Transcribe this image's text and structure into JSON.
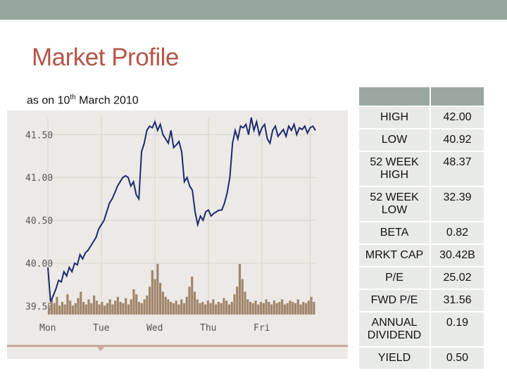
{
  "slide": {
    "title": "Market Profile",
    "subtitle_prefix": "as on 10",
    "subtitle_sup": "th",
    "subtitle_suffix": " March 2010"
  },
  "stats_table": {
    "header": [
      "",
      ""
    ],
    "rows": [
      {
        "label": "HIGH",
        "value": "42.00"
      },
      {
        "label": "LOW",
        "value": "40.92"
      },
      {
        "label": "52 WEEK HIGH",
        "value": "48.37"
      },
      {
        "label": "52 WEEK LOW",
        "value": "32.39"
      },
      {
        "label": "BETA",
        "value": "0.82"
      },
      {
        "label": "MRKT CAP",
        "value": "30.42B"
      },
      {
        "label": "P/E",
        "value": "25.02"
      },
      {
        "label": "FWD P/E",
        "value": "31.56"
      },
      {
        "label": "ANNUAL DIVIDEND",
        "value": "0.19"
      },
      {
        "label": "YIELD",
        "value": "0.50"
      }
    ]
  },
  "chart_data": {
    "type": "line",
    "y_ticks": [
      "41.50",
      "41.00",
      "40.50",
      "40.00",
      "39.50"
    ],
    "x_ticks": [
      "Mon",
      "Tue",
      "Wed",
      "Thu",
      "Fri"
    ],
    "ylim": [
      39.4,
      41.7
    ],
    "series": [
      {
        "x": [
          0,
          0.05,
          0.1,
          0.15,
          0.2,
          0.25,
          0.3,
          0.35,
          0.4,
          0.45,
          0.5,
          0.55,
          0.6,
          0.65,
          0.7,
          0.75,
          0.8,
          0.85,
          0.9,
          0.95,
          1.0,
          1.05,
          1.1,
          1.15,
          1.2,
          1.25,
          1.3,
          1.35,
          1.4,
          1.45,
          1.5,
          1.55,
          1.6,
          1.65,
          1.7,
          1.75,
          1.8,
          1.85,
          1.9,
          1.95,
          2.0,
          2.05,
          2.1,
          2.15,
          2.2,
          2.25,
          2.3,
          2.35,
          2.4,
          2.45,
          2.5,
          2.55,
          2.6,
          2.65,
          2.7,
          2.75,
          2.8,
          2.85,
          2.9,
          2.95,
          3.0,
          3.05,
          3.1,
          3.15,
          3.2,
          3.25,
          3.3,
          3.35,
          3.4,
          3.45,
          3.5,
          3.55,
          3.6,
          3.65,
          3.7,
          3.75,
          3.8,
          3.85,
          3.9,
          3.95,
          4.0,
          4.05,
          4.1,
          4.15,
          4.2,
          4.25,
          4.3,
          4.35,
          4.4,
          4.45,
          4.5,
          4.55,
          4.6,
          4.65,
          4.7,
          4.75,
          4.8,
          4.85,
          4.9,
          4.95,
          5.0
        ],
        "y": [
          39.95,
          39.55,
          39.62,
          39.7,
          39.8,
          39.78,
          39.9,
          39.85,
          39.95,
          39.9,
          40.0,
          39.98,
          40.1,
          40.05,
          40.12,
          40.15,
          40.2,
          40.25,
          40.3,
          40.4,
          40.45,
          40.5,
          40.6,
          40.7,
          40.75,
          40.82,
          40.9,
          40.95,
          41.0,
          41.02,
          41.0,
          40.9,
          40.95,
          40.8,
          40.75,
          41.3,
          41.4,
          41.55,
          41.6,
          41.58,
          41.65,
          41.55,
          41.62,
          41.5,
          41.45,
          41.4,
          41.55,
          41.35,
          41.38,
          41.42,
          41.3,
          40.95,
          41.0,
          40.9,
          40.85,
          40.6,
          40.45,
          40.55,
          40.5,
          40.6,
          40.62,
          40.55,
          40.58,
          40.6,
          40.62,
          40.62,
          40.7,
          40.82,
          41.0,
          41.4,
          41.55,
          41.45,
          41.6,
          41.58,
          41.62,
          41.5,
          41.7,
          41.55,
          41.65,
          41.5,
          41.58,
          41.62,
          41.45,
          41.4,
          41.55,
          41.6,
          41.48,
          41.52,
          41.56,
          41.48,
          41.6,
          41.55,
          41.62,
          41.5,
          41.58,
          41.56,
          41.6,
          41.52,
          41.58,
          41.6,
          41.55
        ]
      }
    ],
    "volume": [
      6,
      12,
      9,
      14,
      7,
      10,
      8,
      16,
      11,
      7,
      9,
      13,
      18,
      10,
      8,
      12,
      9,
      15,
      11,
      8,
      10,
      7,
      9,
      12,
      8,
      11,
      14,
      10,
      9,
      13,
      8,
      12,
      20,
      16,
      10,
      9,
      12,
      15,
      22,
      35,
      28,
      40,
      25,
      18,
      14,
      12,
      10,
      9,
      11,
      8,
      12,
      9,
      14,
      22,
      30,
      18,
      12,
      9,
      10,
      8,
      11,
      9,
      12,
      8,
      10,
      9,
      13,
      11,
      8,
      10,
      16,
      22,
      40,
      28,
      18,
      12,
      10,
      9,
      11,
      8,
      10,
      9,
      12,
      10,
      8,
      11,
      9,
      10,
      12,
      8,
      9,
      11,
      10,
      9,
      12,
      8,
      10,
      9,
      11,
      14,
      10
    ]
  }
}
